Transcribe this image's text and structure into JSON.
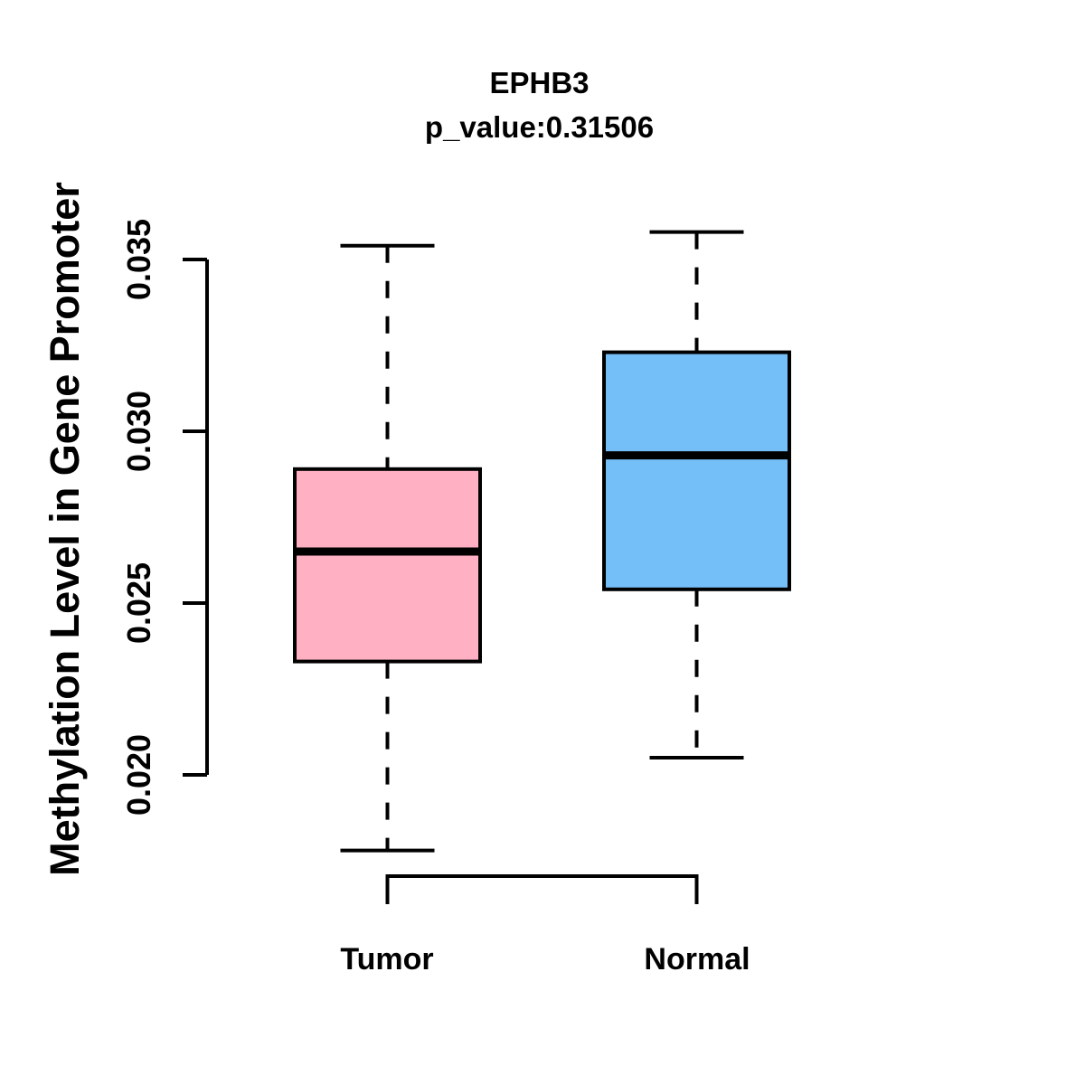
{
  "chart_data": {
    "type": "boxplot",
    "title": "EPHB3",
    "subtitle": "p_value:0.31506",
    "ylabel": "Methylation Level in Gene Promoter",
    "xlabel": "",
    "categories": [
      "Tumor",
      "Normal"
    ],
    "yticks": [
      0.02,
      0.025,
      0.03,
      0.035
    ],
    "ytick_labels": [
      "0.020",
      "0.025",
      "0.030",
      "0.035"
    ],
    "ylim": [
      0.0178,
      0.0358
    ],
    "grid": false,
    "legend": "none",
    "series": [
      {
        "name": "Tumor",
        "whisker_low": 0.0178,
        "q1": 0.0233,
        "median": 0.0265,
        "q3": 0.0289,
        "whisker_high": 0.0354,
        "fill": "#FFB1C3"
      },
      {
        "name": "Normal",
        "whisker_low": 0.0205,
        "q1": 0.0254,
        "median": 0.0293,
        "q3": 0.0323,
        "whisker_high": 0.0358,
        "fill": "#75BFF8"
      }
    ],
    "colors": {
      "axis": "#000000",
      "text": "#000000",
      "background": "#ffffff",
      "tumor_fill": "#FFB1C3",
      "normal_fill": "#75BFF8"
    }
  }
}
